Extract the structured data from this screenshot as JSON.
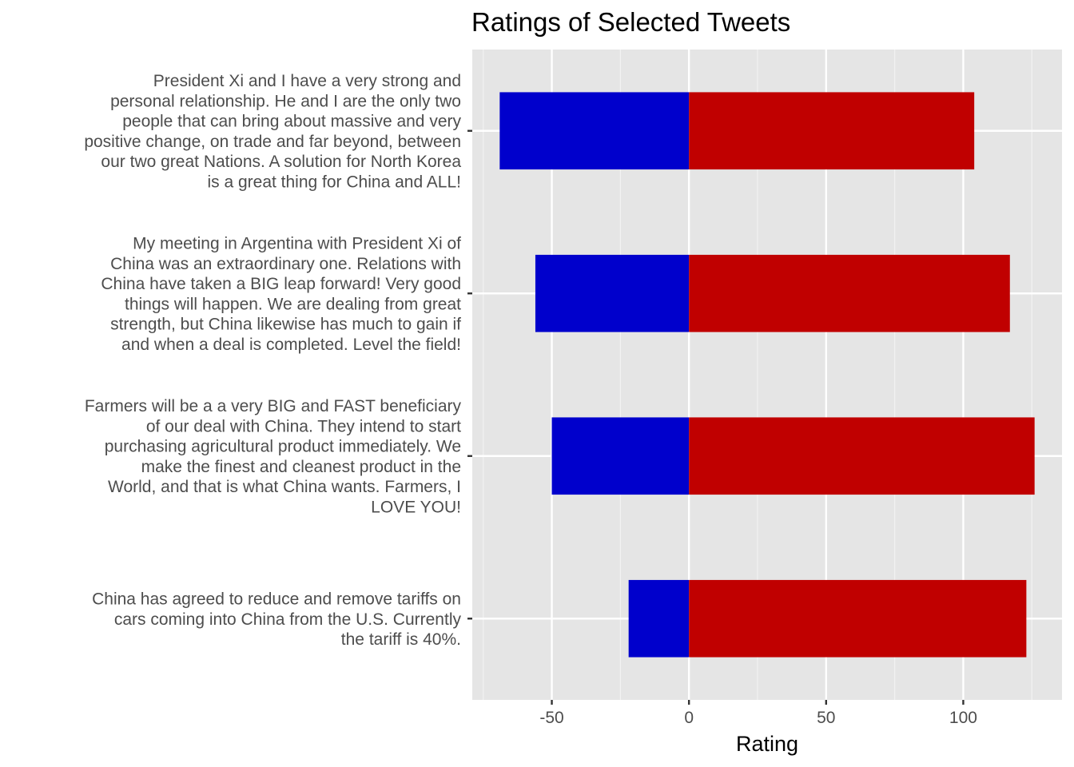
{
  "chart_data": {
    "type": "bar",
    "orientation": "horizontal",
    "stacked": "diverging",
    "title": "Ratings of Selected Tweets",
    "xlabel": "Rating",
    "ylabel": "",
    "xlim": [
      -79,
      136
    ],
    "xticks": [
      -50,
      0,
      50,
      100
    ],
    "tick_labels": [
      "-50",
      "0",
      "50",
      "100"
    ],
    "grid": true,
    "legend": "none",
    "categories": [
      "President Xi and I have a very strong and personal relationship. He and I are the only two people that can bring about massive and very positive change, on trade and far beyond, between our two great Nations. A solution for North Korea is a great thing for China and ALL!",
      "My meeting in Argentina with President Xi of China was an extraordinary one. Relations with China have taken a BIG leap forward! Very good things will happen. We are dealing from great strength, but China likewise has much to gain if and when a deal is completed. Level the field!",
      "Farmers will be a a very BIG and FAST beneficiary of our deal with China. They intend to start purchasing agricultural product immediately. We make the finest and cleanest product in the World, and that is what China wants. Farmers, I LOVE YOU!",
      "China has agreed to reduce and remove tariffs on cars coming into China from the U.S. Currently the tariff is 40%."
    ],
    "category_lines": [
      [
        "President Xi and I have a very strong and",
        "personal relationship. He and I are the only two",
        "people that can bring about massive and very",
        "positive change, on trade and far beyond, between",
        "our two great Nations. A solution for North Korea",
        "is a great thing for China and ALL!"
      ],
      [
        "My meeting in Argentina with President Xi of",
        "China was an extraordinary one. Relations with",
        "China have taken a BIG leap forward! Very good",
        "things will happen. We are dealing from great",
        "strength, but China likewise has much to gain if",
        "and when a deal is completed. Level the field!"
      ],
      [
        "Farmers will be a a very BIG and FAST beneficiary",
        "of our deal with China. They intend to start",
        "purchasing agricultural product immediately. We",
        "make the finest and cleanest product in the",
        "World, and that is what China wants. Farmers, I",
        "LOVE YOU!"
      ],
      [
        "China has agreed to reduce and remove tariffs on",
        "cars coming into China from the U.S. Currently",
        "the tariff is 40%."
      ]
    ],
    "series": [
      {
        "values": [
          -69,
          -56,
          -50,
          -22
        ],
        "color": "#0000cc"
      },
      {
        "values": [
          104,
          117,
          126,
          123
        ],
        "color": "#c00000"
      }
    ]
  }
}
